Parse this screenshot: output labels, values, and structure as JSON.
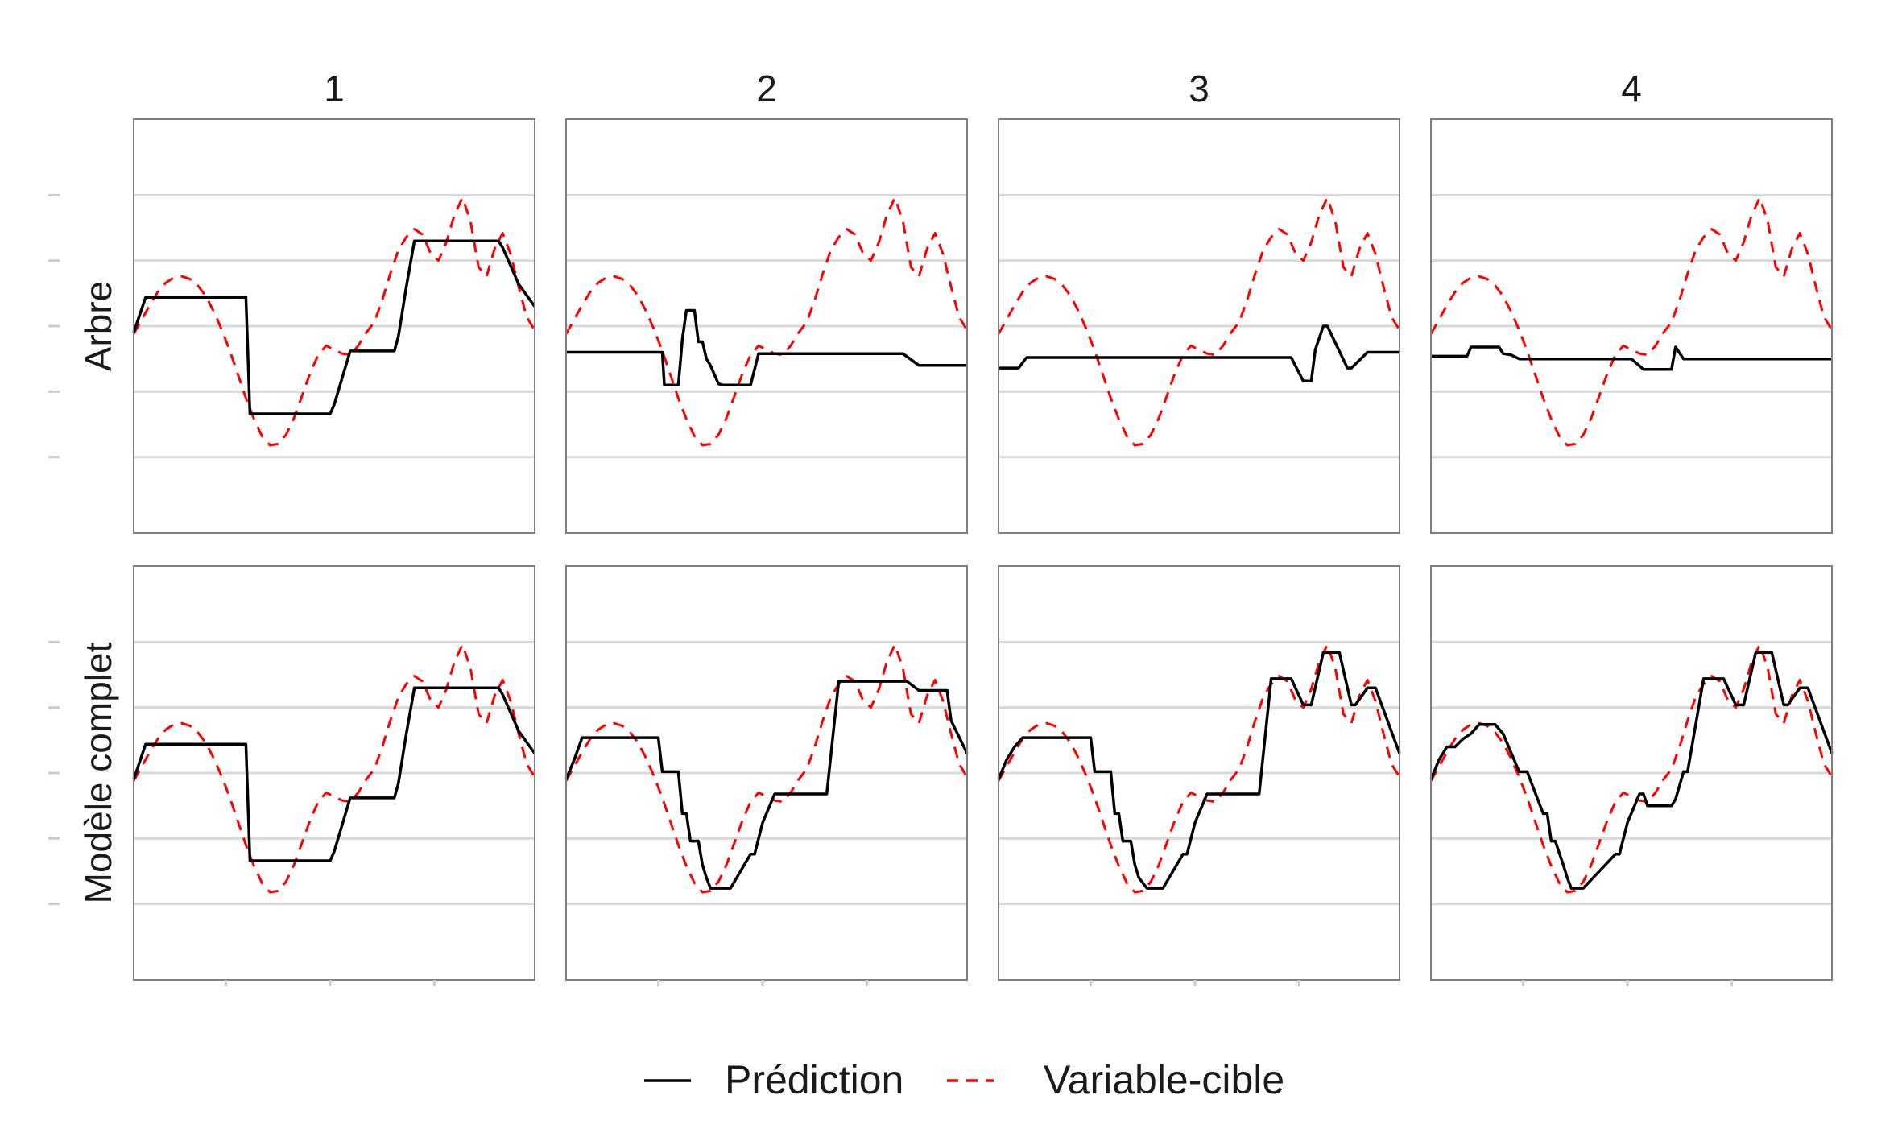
{
  "chart_data": {
    "type": "line",
    "facet_columns": [
      "1",
      "2",
      "3",
      "4"
    ],
    "facet_rows": [
      "Arbre",
      "Modèle complet"
    ],
    "legend": {
      "position": "bottom",
      "entries": [
        {
          "label": "Prédiction",
          "color": "#000000",
          "dash": "solid"
        },
        {
          "label": "Variable-cible",
          "color": "#ff0000",
          "dash": "dashed"
        }
      ]
    },
    "colors": {
      "prediction": "#000000",
      "target": "#ff0000",
      "grid": "#d9d9d9",
      "panel_border": "#7f7f7f"
    },
    "xlim": [
      0,
      1
    ],
    "ylim": [
      -1.58,
      1.58
    ],
    "y_grid": [
      -1,
      -0.5,
      0,
      0.5,
      1
    ],
    "x_ticks": [
      0.23,
      0.49,
      0.75
    ],
    "grid": true,
    "tick_labels_shown": false,
    "target_series": {
      "name": "Variable-cible",
      "x": [
        0,
        0.02,
        0.04,
        0.06,
        0.08,
        0.1,
        0.12,
        0.14,
        0.16,
        0.18,
        0.2,
        0.22,
        0.24,
        0.26,
        0.28,
        0.3,
        0.32,
        0.34,
        0.36,
        0.38,
        0.4,
        0.42,
        0.44,
        0.46,
        0.48,
        0.5,
        0.52,
        0.54,
        0.56,
        0.58,
        0.6,
        0.62,
        0.64,
        0.66,
        0.68,
        0.7,
        0.72,
        0.74,
        0.76,
        0.78,
        0.8,
        0.82,
        0.84,
        0.86,
        0.88,
        0.9,
        0.92,
        0.94,
        0.96,
        0.98,
        1
      ],
      "y": [
        -0.06,
        0.05,
        0.16,
        0.26,
        0.33,
        0.37,
        0.38,
        0.36,
        0.31,
        0.23,
        0.11,
        -0.03,
        -0.19,
        -0.37,
        -0.55,
        -0.71,
        -0.84,
        -0.91,
        -0.9,
        -0.83,
        -0.7,
        -0.53,
        -0.36,
        -0.22,
        -0.15,
        -0.18,
        -0.21,
        -0.22,
        -0.15,
        -0.05,
        0.03,
        0.2,
        0.4,
        0.58,
        0.68,
        0.74,
        0.7,
        0.56,
        0.5,
        0.64,
        0.85,
        0.98,
        0.8,
        0.45,
        0.38,
        0.59,
        0.71,
        0.55,
        0.3,
        0.07,
        -0.03
      ]
    },
    "panels": [
      {
        "row": "Arbre",
        "col": "1",
        "prediction": {
          "x": [
            0,
            0.03,
            0.28,
            0.29,
            0.49,
            0.5,
            0.54,
            0.65,
            0.66,
            0.68,
            0.7,
            0.91,
            0.92,
            0.96,
            1
          ],
          "y": [
            -0.05,
            0.22,
            0.22,
            -0.67,
            -0.67,
            -0.6,
            -0.19,
            -0.19,
            -0.08,
            0.3,
            0.65,
            0.65,
            0.6,
            0.32,
            0.15
          ]
        }
      },
      {
        "row": "Arbre",
        "col": "2",
        "prediction": {
          "x": [
            0,
            0.24,
            0.245,
            0.28,
            0.29,
            0.3,
            0.32,
            0.33,
            0.34,
            0.35,
            0.36,
            0.38,
            0.39,
            0.46,
            0.48,
            0.84,
            0.88,
            1
          ],
          "y": [
            -0.2,
            -0.2,
            -0.45,
            -0.45,
            -0.1,
            0.12,
            0.12,
            -0.12,
            -0.12,
            -0.25,
            -0.3,
            -0.44,
            -0.45,
            -0.45,
            -0.21,
            -0.21,
            -0.3,
            -0.3
          ]
        }
      },
      {
        "row": "Arbre",
        "col": "3",
        "prediction": {
          "x": [
            0,
            0.05,
            0.07,
            0.73,
            0.76,
            0.78,
            0.79,
            0.81,
            0.82,
            0.87,
            0.88,
            0.92,
            1
          ],
          "y": [
            -0.32,
            -0.32,
            -0.24,
            -0.24,
            -0.42,
            -0.42,
            -0.18,
            0,
            0,
            -0.32,
            -0.32,
            -0.2,
            -0.2
          ]
        }
      },
      {
        "row": "Arbre",
        "col": "4",
        "prediction": {
          "x": [
            0,
            0.09,
            0.1,
            0.17,
            0.18,
            0.2,
            0.22,
            0.5,
            0.53,
            0.6,
            0.61,
            0.63,
            1
          ],
          "y": [
            -0.23,
            -0.23,
            -0.16,
            -0.16,
            -0.21,
            -0.22,
            -0.25,
            -0.25,
            -0.33,
            -0.33,
            -0.16,
            -0.25,
            -0.25
          ]
        }
      },
      {
        "row": "Modèle complet",
        "col": "1",
        "prediction": {
          "x": [
            0,
            0.03,
            0.28,
            0.29,
            0.49,
            0.5,
            0.54,
            0.65,
            0.66,
            0.68,
            0.7,
            0.91,
            0.92,
            0.96,
            1
          ],
          "y": [
            -0.05,
            0.22,
            0.22,
            -0.67,
            -0.67,
            -0.6,
            -0.19,
            -0.19,
            -0.08,
            0.3,
            0.65,
            0.65,
            0.6,
            0.32,
            0.15
          ]
        }
      },
      {
        "row": "Modèle complet",
        "col": "2",
        "prediction": {
          "x": [
            0,
            0.02,
            0.04,
            0.23,
            0.24,
            0.28,
            0.29,
            0.3,
            0.31,
            0.33,
            0.34,
            0.35,
            0.36,
            0.37,
            0.39,
            0.41,
            0.46,
            0.47,
            0.49,
            0.52,
            0.53,
            0.64,
            0.65,
            0.68,
            0.69,
            0.85,
            0.88,
            0.95,
            0.96,
            1
          ],
          "y": [
            -0.05,
            0.1,
            0.27,
            0.27,
            0.01,
            0.01,
            -0.31,
            -0.31,
            -0.52,
            -0.52,
            -0.7,
            -0.8,
            -0.88,
            -0.88,
            -0.88,
            -0.88,
            -0.62,
            -0.62,
            -0.38,
            -0.16,
            -0.16,
            -0.16,
            -0.16,
            0.7,
            0.7,
            0.7,
            0.63,
            0.63,
            0.4,
            0.15
          ]
        }
      },
      {
        "row": "Modèle complet",
        "col": "3",
        "prediction": {
          "x": [
            0,
            0.02,
            0.04,
            0.06,
            0.23,
            0.24,
            0.28,
            0.29,
            0.3,
            0.31,
            0.33,
            0.34,
            0.35,
            0.37,
            0.39,
            0.41,
            0.46,
            0.47,
            0.49,
            0.52,
            0.53,
            0.64,
            0.65,
            0.68,
            0.69,
            0.73,
            0.76,
            0.78,
            0.81,
            0.85,
            0.88,
            0.89,
            0.92,
            0.94,
            1
          ],
          "y": [
            -0.05,
            0.1,
            0.2,
            0.27,
            0.27,
            0.01,
            0.01,
            -0.31,
            -0.31,
            -0.52,
            -0.52,
            -0.7,
            -0.8,
            -0.88,
            -0.88,
            -0.88,
            -0.62,
            -0.62,
            -0.38,
            -0.16,
            -0.16,
            -0.16,
            -0.16,
            0.72,
            0.72,
            0.72,
            0.52,
            0.52,
            0.92,
            0.92,
            0.52,
            0.52,
            0.65,
            0.65,
            0.15
          ]
        }
      },
      {
        "row": "Modèle complet",
        "col": "4",
        "prediction": {
          "x": [
            0,
            0.02,
            0.04,
            0.06,
            0.08,
            0.1,
            0.12,
            0.14,
            0.16,
            0.18,
            0.22,
            0.24,
            0.28,
            0.29,
            0.3,
            0.31,
            0.33,
            0.34,
            0.35,
            0.36,
            0.38,
            0.46,
            0.47,
            0.49,
            0.52,
            0.53,
            0.54,
            0.55,
            0.6,
            0.61,
            0.63,
            0.64,
            0.68,
            0.69,
            0.73,
            0.76,
            0.78,
            0.81,
            0.85,
            0.88,
            0.89,
            0.92,
            0.94,
            1
          ],
          "y": [
            -0.05,
            0.1,
            0.2,
            0.2,
            0.26,
            0.3,
            0.37,
            0.37,
            0.37,
            0.3,
            0.01,
            0.01,
            -0.31,
            -0.31,
            -0.52,
            -0.52,
            -0.7,
            -0.8,
            -0.88,
            -0.88,
            -0.88,
            -0.62,
            -0.62,
            -0.38,
            -0.16,
            -0.16,
            -0.25,
            -0.25,
            -0.25,
            -0.2,
            0.01,
            0.01,
            0.72,
            0.72,
            0.72,
            0.52,
            0.52,
            0.92,
            0.92,
            0.52,
            0.52,
            0.65,
            0.65,
            0.15
          ]
        }
      }
    ]
  }
}
